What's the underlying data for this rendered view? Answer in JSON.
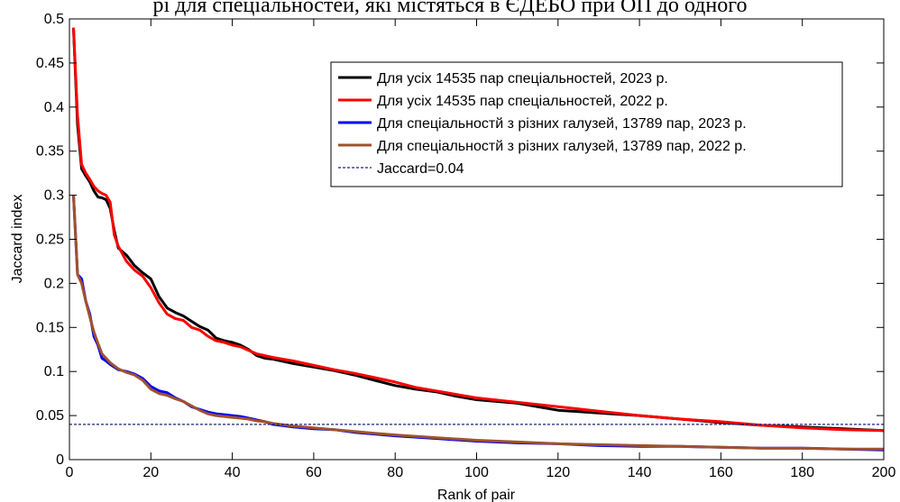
{
  "caption_fragment": "рі для спеціальностей, які містяться в ЄДЕБО при ОП до одного",
  "chart_data": {
    "type": "line",
    "title": "",
    "xlabel": "Rank of pair",
    "ylabel": "Jaccard index",
    "xlim": [
      0,
      200
    ],
    "ylim": [
      0,
      0.5
    ],
    "xticks": [
      0,
      20,
      40,
      60,
      80,
      100,
      120,
      140,
      160,
      180,
      200
    ],
    "yticks": [
      0,
      0.05,
      0.1,
      0.15,
      0.2,
      0.25,
      0.3,
      0.35,
      0.4,
      0.45,
      0.5
    ],
    "grid": false,
    "legend_position": "top-right",
    "series": [
      {
        "name": "Для усіх 14535 пар спеціальностей, 2023 р.",
        "color": "#000000",
        "x": [
          1,
          2,
          3,
          4,
          5,
          6,
          7,
          8,
          9,
          10,
          11,
          12,
          14,
          16,
          18,
          20,
          22,
          24,
          26,
          28,
          30,
          32,
          34,
          36,
          38,
          40,
          42,
          44,
          46,
          48,
          50,
          55,
          60,
          65,
          70,
          75,
          80,
          85,
          90,
          95,
          100,
          110,
          120,
          130,
          140,
          150,
          160,
          170,
          180,
          190,
          200
        ],
        "y": [
          0.49,
          0.38,
          0.33,
          0.322,
          0.315,
          0.305,
          0.298,
          0.297,
          0.295,
          0.285,
          0.26,
          0.24,
          0.232,
          0.22,
          0.212,
          0.205,
          0.185,
          0.172,
          0.167,
          0.163,
          0.157,
          0.151,
          0.147,
          0.138,
          0.135,
          0.133,
          0.13,
          0.125,
          0.118,
          0.115,
          0.114,
          0.109,
          0.105,
          0.101,
          0.096,
          0.09,
          0.084,
          0.08,
          0.077,
          0.072,
          0.068,
          0.064,
          0.056,
          0.053,
          0.05,
          0.046,
          0.042,
          0.039,
          0.037,
          0.035,
          0.033
        ]
      },
      {
        "name": "Для усіх 14535 пар спеціальностей, 2022 р.",
        "color": "#ff0000",
        "x": [
          1,
          2,
          3,
          4,
          5,
          6,
          7,
          8,
          9,
          10,
          11,
          12,
          14,
          16,
          18,
          20,
          22,
          24,
          26,
          28,
          30,
          32,
          34,
          36,
          38,
          40,
          42,
          44,
          46,
          48,
          50,
          55,
          60,
          65,
          70,
          75,
          80,
          85,
          90,
          95,
          100,
          110,
          120,
          130,
          140,
          150,
          160,
          170,
          180,
          190,
          200
        ],
        "y": [
          0.49,
          0.39,
          0.335,
          0.325,
          0.318,
          0.31,
          0.305,
          0.302,
          0.3,
          0.292,
          0.255,
          0.242,
          0.225,
          0.215,
          0.208,
          0.195,
          0.178,
          0.165,
          0.16,
          0.158,
          0.15,
          0.147,
          0.14,
          0.135,
          0.133,
          0.13,
          0.128,
          0.124,
          0.12,
          0.118,
          0.116,
          0.112,
          0.107,
          0.102,
          0.098,
          0.093,
          0.088,
          0.082,
          0.078,
          0.074,
          0.07,
          0.065,
          0.06,
          0.055,
          0.05,
          0.046,
          0.043,
          0.039,
          0.036,
          0.034,
          0.033
        ]
      },
      {
        "name": "Для спеціальностй з різних галузей, 13789 пар, 2023 р.",
        "color": "#0000ff",
        "x": [
          1,
          2,
          3,
          4,
          5,
          6,
          7,
          8,
          9,
          10,
          12,
          14,
          16,
          18,
          20,
          22,
          24,
          26,
          28,
          30,
          32,
          34,
          36,
          38,
          40,
          42,
          44,
          46,
          48,
          50,
          55,
          60,
          65,
          70,
          75,
          80,
          90,
          100,
          110,
          120,
          130,
          140,
          150,
          160,
          170,
          180,
          190,
          200
        ],
        "y": [
          0.3,
          0.21,
          0.205,
          0.18,
          0.165,
          0.14,
          0.13,
          0.115,
          0.112,
          0.108,
          0.102,
          0.1,
          0.097,
          0.092,
          0.083,
          0.078,
          0.076,
          0.07,
          0.066,
          0.06,
          0.057,
          0.054,
          0.052,
          0.051,
          0.05,
          0.049,
          0.047,
          0.045,
          0.043,
          0.04,
          0.037,
          0.035,
          0.034,
          0.031,
          0.029,
          0.027,
          0.024,
          0.021,
          0.019,
          0.018,
          0.016,
          0.015,
          0.015,
          0.014,
          0.013,
          0.013,
          0.012,
          0.011
        ]
      },
      {
        "name": "Для спеціальностй з різних галузей, 13789 пар, 2022 р.",
        "color": "#a0522d",
        "x": [
          1,
          2,
          3,
          4,
          5,
          6,
          7,
          8,
          9,
          10,
          12,
          14,
          16,
          18,
          20,
          22,
          24,
          26,
          28,
          30,
          32,
          34,
          36,
          38,
          40,
          42,
          44,
          46,
          48,
          50,
          55,
          60,
          65,
          70,
          75,
          80,
          90,
          100,
          110,
          120,
          130,
          140,
          150,
          160,
          170,
          180,
          190,
          200
        ],
        "y": [
          0.3,
          0.21,
          0.2,
          0.18,
          0.162,
          0.145,
          0.132,
          0.12,
          0.115,
          0.11,
          0.103,
          0.099,
          0.096,
          0.09,
          0.08,
          0.075,
          0.073,
          0.069,
          0.066,
          0.061,
          0.056,
          0.052,
          0.05,
          0.049,
          0.048,
          0.047,
          0.046,
          0.044,
          0.043,
          0.041,
          0.038,
          0.036,
          0.034,
          0.032,
          0.03,
          0.028,
          0.025,
          0.022,
          0.02,
          0.018,
          0.017,
          0.016,
          0.015,
          0.014,
          0.013,
          0.013,
          0.012,
          0.012
        ]
      }
    ],
    "reference_line": {
      "name": "Jaccard=0.04",
      "y": 0.04,
      "color": "#1a237e",
      "style": "dashed"
    }
  }
}
